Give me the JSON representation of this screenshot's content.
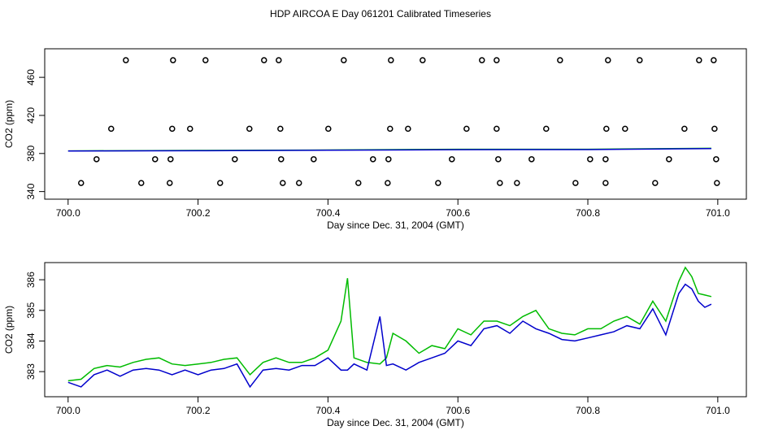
{
  "chart_data": [
    {
      "type": "line",
      "title": "HDP AIRCOA E  Day 061201  Calibrated Timeseries",
      "xlabel": "Day since Dec. 31, 2004 (GMT)",
      "ylabel": "CO2 (ppm)",
      "xlim": [
        699.964,
        701.044
      ],
      "ylim": [
        332,
        490
      ],
      "xticks": [
        {
          "value": 700,
          "label": "700.0"
        },
        700.2,
        700.4,
        700.6,
        700.8,
        {
          "value": 701,
          "label": "701.0"
        }
      ],
      "yticks": [
        340,
        380,
        420,
        460
      ],
      "x": [
        700.0,
        700.2,
        700.4,
        700.6,
        700.8,
        700.99
      ],
      "series": [
        {
          "color": "#00bb00",
          "values": [
            382.7,
            383.25,
            383.7,
            384.4,
            384.4,
            385.45
          ]
        },
        {
          "color": "#0000cc",
          "values": [
            382.65,
            382.9,
            383.45,
            384.0,
            384.1,
            385.2
          ]
        }
      ],
      "points": {
        "color": "#000000",
        "x": [
          700.0889,
          700.1615,
          700.2115,
          700.3016,
          700.3242,
          700.4243,
          700.4969,
          700.5457,
          700.637,
          700.6596,
          700.7572,
          700.831,
          700.8798,
          700.9712,
          700.9937,
          700.0663,
          700.1602,
          700.1877,
          700.2791,
          700.3267,
          700.4005,
          700.4956,
          700.5232,
          700.6133,
          700.6596,
          700.7359,
          700.8285,
          700.8573,
          700.9487,
          700.995,
          700.0438,
          700.1339,
          700.1577,
          700.2566,
          700.3279,
          700.378,
          700.4693,
          700.4931,
          700.5907,
          700.6621,
          700.7134,
          700.8035,
          700.8273,
          700.9249,
          700.9975,
          700.02,
          700.1126,
          700.1564,
          700.234,
          700.3304,
          700.3554,
          700.4468,
          700.4919,
          700.5695,
          700.6646,
          700.6909,
          700.781,
          700.8273,
          700.9036,
          700.9987
        ],
        "y": [
          478,
          478,
          478,
          478,
          478,
          478,
          478,
          478,
          478,
          478,
          478,
          478,
          478,
          478,
          478,
          406,
          406,
          406,
          406,
          406,
          406,
          406,
          406,
          406,
          406,
          406,
          406,
          406,
          406,
          406,
          374,
          374,
          374,
          374,
          374,
          374,
          374,
          374,
          374,
          374,
          374,
          374,
          374,
          374,
          374,
          349,
          349,
          349,
          349,
          349,
          349,
          349,
          349,
          349,
          349,
          349,
          349,
          349,
          349,
          349
        ]
      }
    },
    {
      "type": "line",
      "xlabel": "Day since Dec. 31, 2004 (GMT)",
      "ylabel": "CO2 (ppm)",
      "xlim": [
        699.964,
        701.044
      ],
      "ylim": [
        382.18,
        386.56
      ],
      "xticks": [
        {
          "value": 700,
          "label": "700.0"
        },
        700.2,
        700.4,
        700.6,
        700.8,
        {
          "value": 701,
          "label": "701.0"
        }
      ],
      "yticks": [
        383,
        384,
        385,
        386
      ],
      "x": [
        700.0,
        700.02,
        700.04,
        700.06,
        700.08,
        700.1,
        700.12,
        700.14,
        700.16,
        700.18,
        700.2,
        700.22,
        700.24,
        700.26,
        700.28,
        700.3,
        700.32,
        700.34,
        700.36,
        700.38,
        700.4,
        700.42,
        700.43,
        700.44,
        700.46,
        700.48,
        700.49,
        700.5,
        700.52,
        700.54,
        700.56,
        700.58,
        700.6,
        700.62,
        700.64,
        700.66,
        700.68,
        700.7,
        700.72,
        700.74,
        700.76,
        700.78,
        700.8,
        700.82,
        700.84,
        700.86,
        700.88,
        700.9,
        700.92,
        700.94,
        700.95,
        700.96,
        700.97,
        700.98,
        700.99
      ],
      "series": [
        {
          "color": "#00bb00",
          "values": [
            382.7,
            382.75,
            383.1,
            383.2,
            383.15,
            383.3,
            383.4,
            383.45,
            383.25,
            383.2,
            383.25,
            383.3,
            383.4,
            383.45,
            382.9,
            383.3,
            383.45,
            383.3,
            383.3,
            383.45,
            383.7,
            384.65,
            386.05,
            383.45,
            383.3,
            383.25,
            383.45,
            384.25,
            384.0,
            383.6,
            383.85,
            383.75,
            384.4,
            384.2,
            384.65,
            384.65,
            384.5,
            384.8,
            385.0,
            384.4,
            384.25,
            384.2,
            384.4,
            384.4,
            384.65,
            384.8,
            384.55,
            385.3,
            384.65,
            385.95,
            386.4,
            386.1,
            385.55,
            385.5,
            385.45
          ]
        },
        {
          "color": "#0000cc",
          "values": [
            382.65,
            382.5,
            382.9,
            383.05,
            382.85,
            383.05,
            383.1,
            383.05,
            382.9,
            383.05,
            382.9,
            383.05,
            383.1,
            383.25,
            382.5,
            383.05,
            383.1,
            383.05,
            383.2,
            383.2,
            383.45,
            383.05,
            383.05,
            383.25,
            383.05,
            384.8,
            383.2,
            383.25,
            383.05,
            383.3,
            383.45,
            383.6,
            384.0,
            383.85,
            384.4,
            384.5,
            384.25,
            384.65,
            384.4,
            384.25,
            384.05,
            384.0,
            384.1,
            384.2,
            384.3,
            384.5,
            384.4,
            385.05,
            384.2,
            385.55,
            385.85,
            385.7,
            385.3,
            385.1,
            385.2
          ]
        }
      ]
    }
  ]
}
